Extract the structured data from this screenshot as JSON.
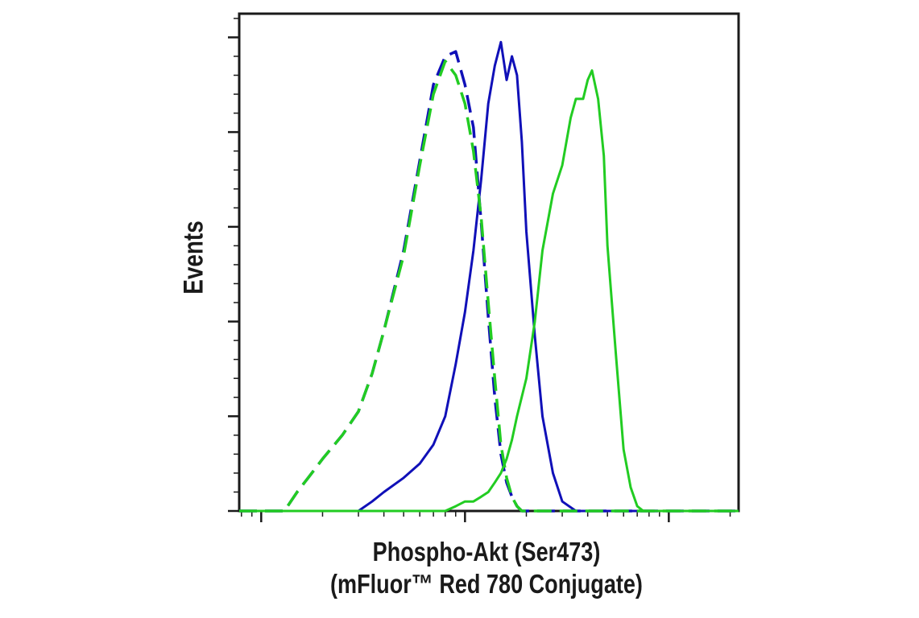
{
  "chart_data": {
    "type": "line",
    "xlabel_line1": "Phospho-Akt (Ser473)",
    "xlabel_line2": "(mFluor™ Red 780 Conjugate)",
    "ylabel": "Events",
    "x_scale": "log",
    "xlim": [
      0.78,
      220
    ],
    "ylim": [
      0,
      105
    ],
    "grid": false,
    "legend": "none",
    "x_tick_labels": [],
    "y_tick_labels": [],
    "series": [
      {
        "color": "#1010b8",
        "dash": true,
        "x": [
          0.78,
          1.3,
          1.5,
          1.7,
          2.0,
          2.5,
          3.0,
          3.5,
          4.0,
          5.0,
          6.0,
          7.0,
          8.0,
          9.0,
          10.0,
          11.0,
          12.0,
          13.0,
          14.0,
          15.0,
          16.0,
          17.0,
          18.0,
          19.0,
          20.0,
          21.0,
          220
        ],
        "y": [
          0,
          0,
          4,
          7,
          11,
          16,
          21,
          29,
          38,
          55,
          74,
          90,
          96,
          97,
          90,
          81,
          61,
          41,
          24,
          12,
          6,
          3,
          1,
          0,
          0,
          0,
          0
        ]
      },
      {
        "color": "#1010b8",
        "dash": false,
        "x": [
          0.78,
          3.0,
          3.5,
          4.0,
          5.0,
          6.0,
          7.0,
          8.0,
          9.0,
          10.0,
          11.0,
          12.0,
          13.0,
          14.0,
          15.0,
          16.0,
          17.0,
          18.0,
          19.0,
          20.0,
          22.0,
          24.0,
          27.0,
          30.0,
          35.0,
          220
        ],
        "y": [
          0,
          0,
          2,
          4,
          7,
          10,
          14,
          20,
          31,
          42,
          55,
          70,
          86,
          94,
          99,
          91,
          96,
          92,
          78,
          59,
          37,
          20,
          8,
          2,
          0,
          0
        ]
      },
      {
        "color": "#22cc22",
        "dash": true,
        "x": [
          0.78,
          1.3,
          1.5,
          1.7,
          2.0,
          2.5,
          3.0,
          3.5,
          4.0,
          5.0,
          6.0,
          7.0,
          8.0,
          9.0,
          10.0,
          11.0,
          12.0,
          13.0,
          14.0,
          15.0,
          16.0,
          17.0,
          18.0,
          19.0,
          20.0,
          21.0,
          220
        ],
        "y": [
          0,
          0,
          4,
          7,
          11,
          16,
          21,
          29,
          38,
          54,
          73,
          88,
          95,
          92,
          86,
          76,
          62,
          44,
          28,
          14,
          7,
          3,
          1,
          0,
          0,
          0,
          0
        ]
      },
      {
        "color": "#22cc22",
        "dash": false,
        "x": [
          0.78,
          8.0,
          9.0,
          10.0,
          11.0,
          12.0,
          13.0,
          14.0,
          15.0,
          16.0,
          17.0,
          18.0,
          20.0,
          22.0,
          24.0,
          27.0,
          30.0,
          33.0,
          35.0,
          38.0,
          40.0,
          42.0,
          45.0,
          48.0,
          50.0,
          55.0,
          60.0,
          65.0,
          70.0,
          75.0,
          80.0,
          220
        ],
        "y": [
          0,
          0,
          1,
          2,
          2,
          3,
          4,
          6,
          8,
          11,
          15,
          20,
          28,
          40,
          55,
          67,
          73,
          83,
          87,
          87,
          91,
          93,
          87,
          75,
          56,
          33,
          13,
          5,
          1,
          0,
          0,
          0
        ]
      }
    ]
  }
}
